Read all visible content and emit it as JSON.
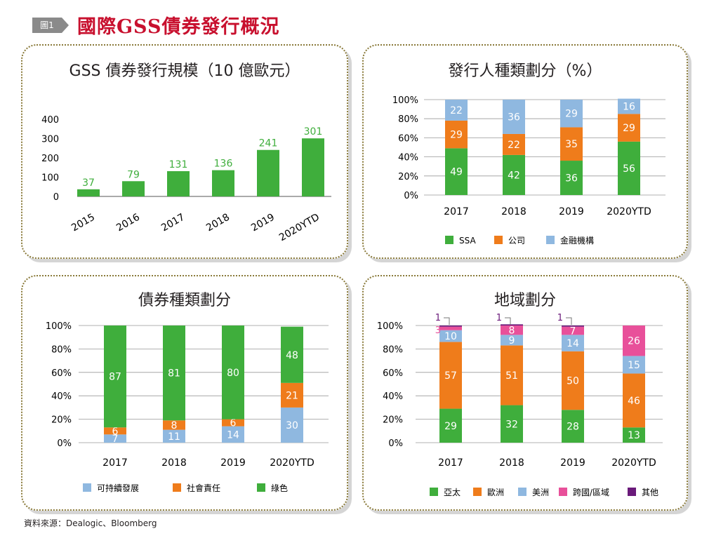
{
  "header": {
    "tag": "圖1",
    "title": "國際GSS債券發行概況"
  },
  "source": "資料來源：Dealogic、Bloomberg",
  "colors": {
    "green": "#3fae3c",
    "orange": "#ef7c1b",
    "blue": "#8fb8e0",
    "pink": "#e8509a",
    "purple": "#6a1a7a",
    "grid": "#999999"
  },
  "chart_data": [
    {
      "id": "issuance",
      "type": "bar",
      "title": "GSS 債券發行規模（10 億歐元）",
      "categories": [
        "2015",
        "2016",
        "2017",
        "2018",
        "2019",
        "2020YTD"
      ],
      "values": [
        37,
        79,
        131,
        136,
        241,
        301
      ],
      "ylim": [
        0,
        400
      ],
      "yticks": [
        "0",
        "100",
        "200",
        "300",
        "400"
      ],
      "grid": false
    },
    {
      "id": "issuer",
      "type": "bar",
      "stacked": true,
      "title": "發行人種類劃分（%）",
      "categories": [
        "2017",
        "2018",
        "2019",
        "2020YTD"
      ],
      "yticks": [
        "0%",
        "20%",
        "40%",
        "60%",
        "80%",
        "100%"
      ],
      "ylim": [
        0,
        100
      ],
      "grid": true,
      "legend": "bottom",
      "series": [
        {
          "name": "SSA",
          "color": "#3fae3c",
          "values": [
            49,
            42,
            36,
            56
          ]
        },
        {
          "name": "公司",
          "color": "#ef7c1b",
          "values": [
            29,
            22,
            35,
            29
          ]
        },
        {
          "name": "金融機構",
          "color": "#8fb8e0",
          "values": [
            22,
            36,
            29,
            16
          ]
        }
      ]
    },
    {
      "id": "bondtype",
      "type": "bar",
      "stacked": true,
      "title": "債券種類劃分",
      "categories": [
        "2017",
        "2018",
        "2019",
        "2020YTD"
      ],
      "yticks": [
        "0%",
        "20%",
        "40%",
        "60%",
        "80%",
        "100%"
      ],
      "ylim": [
        0,
        100
      ],
      "grid": true,
      "legend": "bottom",
      "series": [
        {
          "name": "可持續發展",
          "color": "#8fb8e0",
          "values": [
            7,
            11,
            14,
            30
          ]
        },
        {
          "name": "社會責任",
          "color": "#ef7c1b",
          "values": [
            6,
            8,
            6,
            21
          ]
        },
        {
          "name": "綠色",
          "color": "#3fae3c",
          "values": [
            87,
            81,
            80,
            48
          ]
        }
      ]
    },
    {
      "id": "region",
      "type": "bar",
      "stacked": true,
      "title": "地域劃分",
      "categories": [
        "2017",
        "2018",
        "2019",
        "2020YTD"
      ],
      "yticks": [
        "0%",
        "20%",
        "40%",
        "60%",
        "80%",
        "100%"
      ],
      "ylim": [
        0,
        100
      ],
      "grid": true,
      "legend": "bottom",
      "series": [
        {
          "name": "亞太",
          "color": "#3fae3c",
          "values": [
            29,
            32,
            28,
            13
          ]
        },
        {
          "name": "歐洲",
          "color": "#ef7c1b",
          "values": [
            57,
            51,
            50,
            46
          ]
        },
        {
          "name": "美洲",
          "color": "#8fb8e0",
          "values": [
            10,
            9,
            14,
            15
          ]
        },
        {
          "name": "跨國/區域",
          "color": "#e8509a",
          "values": [
            3,
            8,
            7,
            26
          ]
        },
        {
          "name": "其他",
          "color": "#6a1a7a",
          "values": [
            1,
            1,
            1,
            0
          ]
        }
      ]
    }
  ]
}
